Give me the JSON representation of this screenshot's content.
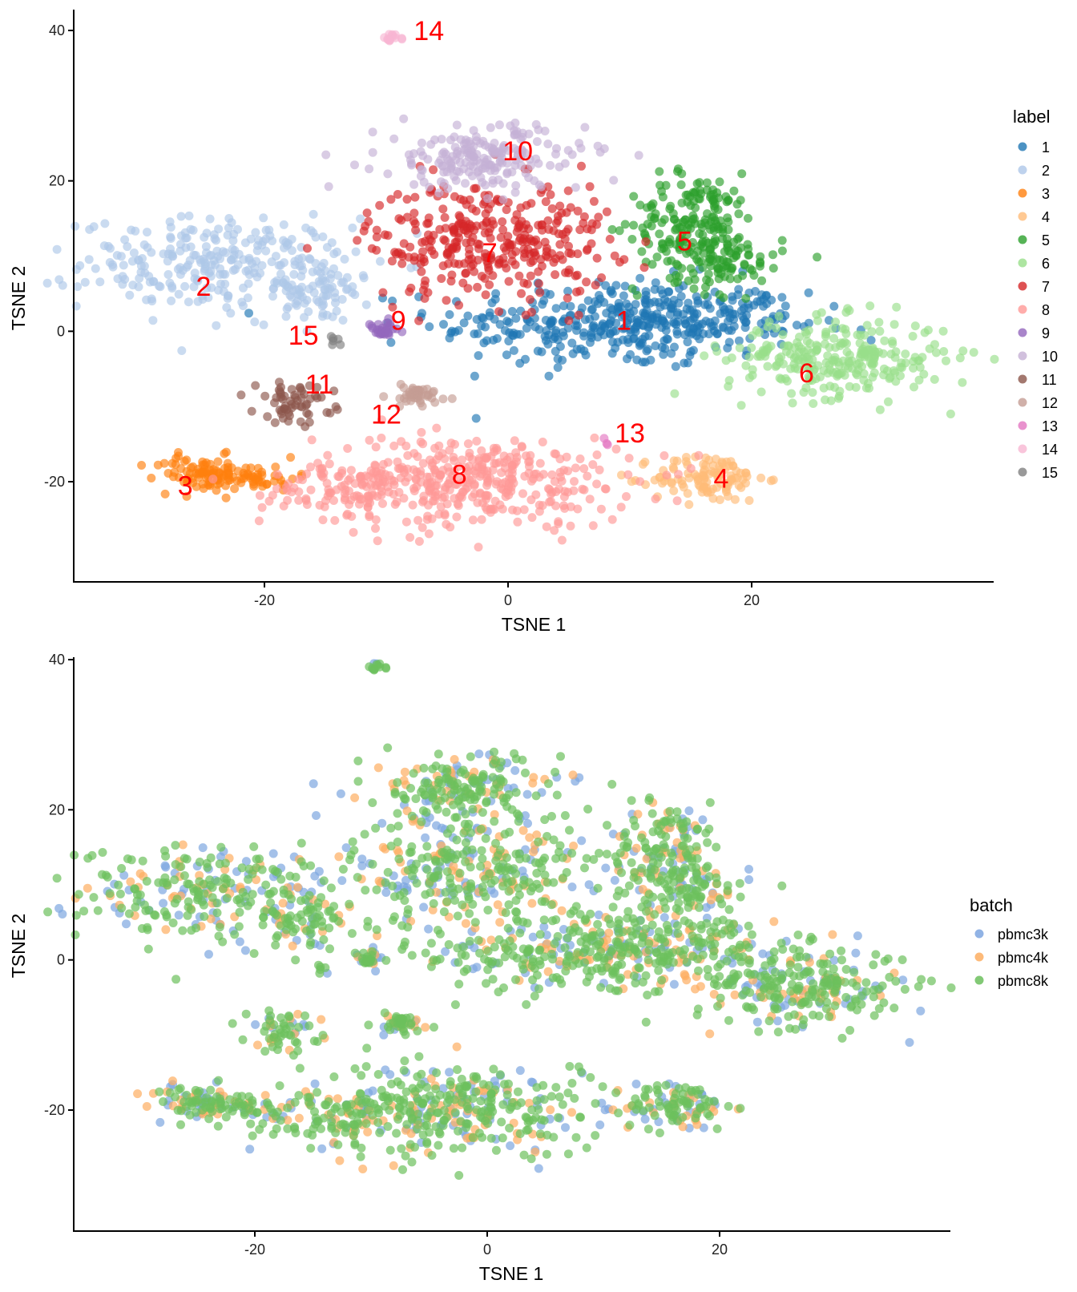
{
  "chart_data": [
    {
      "type": "scatter",
      "title": "",
      "xlabel": "TSNE 1",
      "ylabel": "TSNE 2",
      "xlim": [
        -36,
        37
      ],
      "ylim": [
        -31,
        43
      ],
      "x_ticks": [
        -20,
        0,
        20
      ],
      "y_ticks": [
        -20,
        0,
        20,
        40
      ],
      "x_tick_labels": [
        "-20",
        "0",
        "20"
      ],
      "y_tick_labels": [
        "-20",
        "0",
        "20",
        "40"
      ],
      "grid": false,
      "legend": {
        "title": "label",
        "placement": "right"
      },
      "series": [
        {
          "name": "1",
          "color": "#1f77b4",
          "clusters": [
            {
              "cx": 9,
              "cy": 1,
              "sx": 7.5,
              "sy": 3,
              "n": 330
            },
            {
              "cx": 15,
              "cy": 2,
              "sx": 5,
              "sy": 1.6,
              "n": 100
            }
          ],
          "label_pos": [
            9.5,
            1.5
          ]
        },
        {
          "name": "2",
          "color": "#aec7e8",
          "clusters": [
            {
              "cx": -24,
              "cy": 9,
              "sx": 5.5,
              "sy": 3,
              "n": 260
            },
            {
              "cx": -16,
              "cy": 5.5,
              "sx": 2.3,
              "sy": 2.2,
              "n": 80
            }
          ],
          "label_pos": [
            -25,
            6
          ]
        },
        {
          "name": "3",
          "color": "#ff7f0e",
          "clusters": [
            {
              "cx": -25,
              "cy": -19,
              "sx": 2,
              "sy": 1.2,
              "n": 90
            },
            {
              "cx": -20.5,
              "cy": -19.5,
              "sx": 1.6,
              "sy": 0.8,
              "n": 40
            }
          ],
          "label_pos": [
            -26.5,
            -20.5
          ]
        },
        {
          "name": "4",
          "color": "#ffbb78",
          "clusters": [
            {
              "cx": 16.5,
              "cy": -19.5,
              "sx": 2.3,
              "sy": 1.6,
              "n": 110
            }
          ],
          "label_pos": [
            17.5,
            -19.5
          ]
        },
        {
          "name": "5",
          "color": "#2ca02c",
          "clusters": [
            {
              "cx": 15.5,
              "cy": 14,
              "sx": 2.6,
              "sy": 3.5,
              "n": 200
            },
            {
              "cx": 18,
              "cy": 9,
              "sx": 2.3,
              "sy": 2,
              "n": 60
            }
          ],
          "label_pos": [
            14.5,
            12
          ]
        },
        {
          "name": "6",
          "color": "#98df8a",
          "clusters": [
            {
              "cx": 27,
              "cy": -3.5,
              "sx": 4.5,
              "sy": 2.6,
              "n": 270
            }
          ],
          "label_pos": [
            24.5,
            -5.5
          ]
        },
        {
          "name": "7",
          "color": "#d62728",
          "clusters": [
            {
              "cx": -1.5,
              "cy": 12,
              "sx": 5,
              "sy": 4,
              "n": 340
            }
          ],
          "label_pos": [
            -1.5,
            10.5
          ]
        },
        {
          "name": "8",
          "color": "#ff9896",
          "clusters": [
            {
              "cx": -3,
              "cy": -20,
              "sx": 6.5,
              "sy": 3,
              "n": 380
            },
            {
              "cx": -13,
              "cy": -20.5,
              "sx": 3.5,
              "sy": 1.8,
              "n": 80
            }
          ],
          "label_pos": [
            -4,
            -19
          ]
        },
        {
          "name": "9",
          "color": "#9467bd",
          "clusters": [
            {
              "cx": -10.3,
              "cy": 0,
              "sx": 0.7,
              "sy": 0.6,
              "n": 30
            }
          ],
          "label_pos": [
            -9,
            1.5
          ]
        },
        {
          "name": "10",
          "color": "#c5b0d5",
          "clusters": [
            {
              "cx": -2,
              "cy": 23,
              "sx": 4.2,
              "sy": 2.2,
              "n": 200
            }
          ],
          "label_pos": [
            0.8,
            24
          ]
        },
        {
          "name": "11",
          "color": "#8c564b",
          "clusters": [
            {
              "cx": -17.5,
              "cy": -9.5,
              "sx": 1.6,
              "sy": 1.3,
              "n": 60
            }
          ],
          "label_pos": [
            -15.5,
            -7
          ]
        },
        {
          "name": "12",
          "color": "#c49c94",
          "clusters": [
            {
              "cx": -7.5,
              "cy": -8.5,
              "sx": 1.3,
              "sy": 0.8,
              "n": 45
            }
          ],
          "label_pos": [
            -10,
            -11
          ]
        },
        {
          "name": "13",
          "color": "#e377c2",
          "clusters": [
            {
              "cx": 7.8,
              "cy": -15,
              "sx": 0.3,
              "sy": 0.3,
              "n": 3
            }
          ],
          "label_pos": [
            10,
            -13.5
          ]
        },
        {
          "name": "14",
          "color": "#f7b6d2",
          "clusters": [
            {
              "cx": -9.5,
              "cy": 39,
              "sx": 0.7,
              "sy": 0.3,
              "n": 14
            }
          ],
          "label_pos": [
            -6.5,
            40
          ]
        },
        {
          "name": "15",
          "color": "#7f7f7f",
          "clusters": [
            {
              "cx": -14.5,
              "cy": -1.5,
              "sx": 0.3,
              "sy": 0.4,
              "n": 6
            }
          ],
          "label_pos": [
            -16.8,
            -0.5
          ]
        }
      ]
    },
    {
      "type": "scatter",
      "title": "",
      "xlabel": "TSNE 1",
      "ylabel": "TSNE 2",
      "xlim": [
        -36,
        37
      ],
      "ylim": [
        -31,
        43
      ],
      "x_ticks": [
        -20,
        0,
        20
      ],
      "y_ticks": [
        -20,
        0,
        20,
        40
      ],
      "x_tick_labels": [
        "-20",
        "0",
        "20"
      ],
      "y_tick_labels": [
        "-20",
        "0",
        "20",
        "40"
      ],
      "grid": false,
      "legend": {
        "title": "batch",
        "placement": "right"
      },
      "series": [
        {
          "name": "pbmc3k",
          "color": "#7ea6e0"
        },
        {
          "name": "pbmc4k",
          "color": "#fdae61"
        },
        {
          "name": "pbmc8k",
          "color": "#6cc05d"
        }
      ]
    }
  ]
}
